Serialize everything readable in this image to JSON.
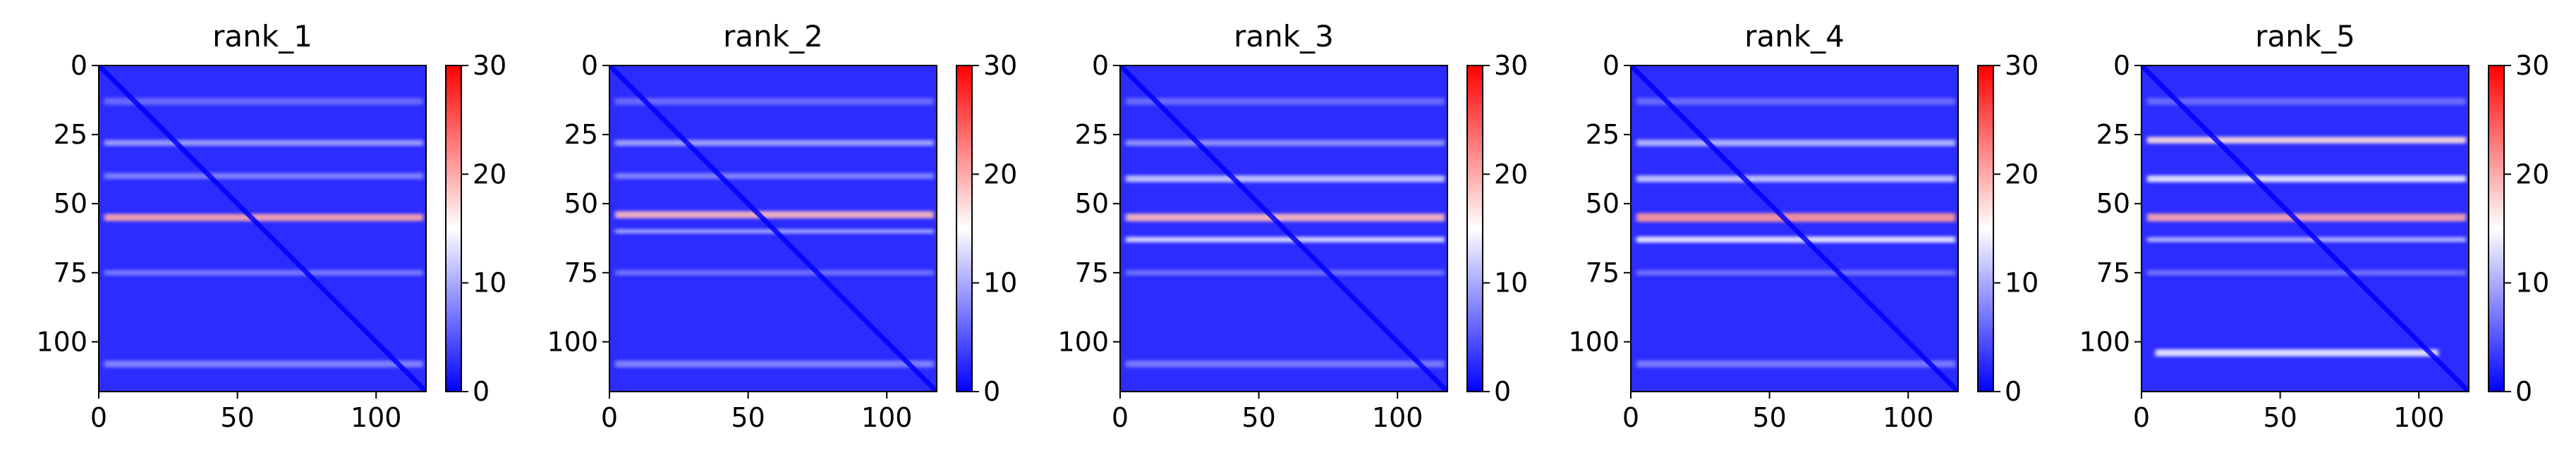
{
  "chart_data": [
    {
      "type": "heatmap",
      "title": "rank_1",
      "x_ticks": [
        "0",
        "50",
        "100"
      ],
      "y_ticks": [
        "0",
        "25",
        "50",
        "75",
        "100"
      ],
      "x_tick_values": [
        0,
        50,
        100
      ],
      "y_tick_values": [
        0,
        25,
        50,
        75,
        100
      ],
      "xlim": [
        0,
        118
      ],
      "ylim": [
        118,
        0
      ],
      "colorbar": {
        "ticks": [
          "0",
          "10",
          "20",
          "30"
        ],
        "tick_values": [
          0,
          10,
          20,
          30
        ],
        "range": [
          0,
          30
        ],
        "colormap": "bwr"
      },
      "bands": [
        {
          "row": 13,
          "width": 2.5,
          "value": 6.5,
          "extent": [
            2,
            117
          ]
        },
        {
          "row": 28,
          "width": 2.2,
          "value": 9.5,
          "extent": [
            2,
            117
          ]
        },
        {
          "row": 40,
          "width": 2.2,
          "value": 8.0,
          "extent": [
            2,
            117
          ]
        },
        {
          "row": 55,
          "width": 2.6,
          "value": 20.0,
          "extent": [
            2,
            117
          ]
        },
        {
          "row": 75,
          "width": 2.0,
          "value": 7.5,
          "extent": [
            2,
            117
          ]
        },
        {
          "row": 108,
          "width": 2.5,
          "value": 8.0,
          "extent": [
            2,
            117
          ]
        }
      ]
    },
    {
      "type": "heatmap",
      "title": "rank_2",
      "x_ticks": [
        "0",
        "50",
        "100"
      ],
      "y_ticks": [
        "0",
        "25",
        "50",
        "75",
        "100"
      ],
      "x_tick_values": [
        0,
        50,
        100
      ],
      "y_tick_values": [
        0,
        25,
        50,
        75,
        100
      ],
      "xlim": [
        0,
        118
      ],
      "ylim": [
        118,
        0
      ],
      "colorbar": {
        "ticks": [
          "0",
          "10",
          "20",
          "30"
        ],
        "tick_values": [
          0,
          10,
          20,
          30
        ],
        "range": [
          0,
          30
        ],
        "colormap": "bwr"
      },
      "bands": [
        {
          "row": 13,
          "width": 2.5,
          "value": 6.5,
          "extent": [
            2,
            117
          ]
        },
        {
          "row": 28,
          "width": 2.2,
          "value": 10.0,
          "extent": [
            2,
            117
          ]
        },
        {
          "row": 40,
          "width": 2.2,
          "value": 8.0,
          "extent": [
            2,
            117
          ]
        },
        {
          "row": 54,
          "width": 2.6,
          "value": 19.0,
          "extent": [
            2,
            117
          ]
        },
        {
          "row": 60,
          "width": 1.6,
          "value": 10.0,
          "extent": [
            2,
            117
          ]
        },
        {
          "row": 75,
          "width": 2.0,
          "value": 7.0,
          "extent": [
            2,
            117
          ]
        },
        {
          "row": 108,
          "width": 2.5,
          "value": 8.0,
          "extent": [
            2,
            117
          ]
        }
      ]
    },
    {
      "type": "heatmap",
      "title": "rank_3",
      "x_ticks": [
        "0",
        "50",
        "100"
      ],
      "y_ticks": [
        "0",
        "25",
        "50",
        "75",
        "100"
      ],
      "x_tick_values": [
        0,
        50,
        100
      ],
      "y_tick_values": [
        0,
        25,
        50,
        75,
        100
      ],
      "xlim": [
        0,
        118
      ],
      "ylim": [
        118,
        0
      ],
      "colorbar": {
        "ticks": [
          "0",
          "10",
          "20",
          "30"
        ],
        "tick_values": [
          0,
          10,
          20,
          30
        ],
        "range": [
          0,
          30
        ],
        "colormap": "bwr"
      },
      "bands": [
        {
          "row": 13,
          "width": 2.5,
          "value": 6.5,
          "extent": [
            2,
            117
          ]
        },
        {
          "row": 28,
          "width": 2.2,
          "value": 9.0,
          "extent": [
            2,
            117
          ]
        },
        {
          "row": 41,
          "width": 2.4,
          "value": 12.0,
          "extent": [
            2,
            117
          ]
        },
        {
          "row": 55,
          "width": 2.8,
          "value": 19.0,
          "extent": [
            2,
            117
          ]
        },
        {
          "row": 63,
          "width": 2.0,
          "value": 13.0,
          "extent": [
            2,
            117
          ]
        },
        {
          "row": 75,
          "width": 2.0,
          "value": 7.0,
          "extent": [
            2,
            117
          ]
        },
        {
          "row": 108,
          "width": 2.5,
          "value": 7.5,
          "extent": [
            2,
            117
          ]
        }
      ]
    },
    {
      "type": "heatmap",
      "title": "rank_4",
      "x_ticks": [
        "0",
        "50",
        "100"
      ],
      "y_ticks": [
        "0",
        "25",
        "50",
        "75",
        "100"
      ],
      "x_tick_values": [
        0,
        50,
        100
      ],
      "y_tick_values": [
        0,
        25,
        50,
        75,
        100
      ],
      "xlim": [
        0,
        118
      ],
      "ylim": [
        118,
        0
      ],
      "colorbar": {
        "ticks": [
          "0",
          "10",
          "20",
          "30"
        ],
        "tick_values": [
          0,
          10,
          20,
          30
        ],
        "range": [
          0,
          30
        ],
        "colormap": "bwr"
      },
      "bands": [
        {
          "row": 13,
          "width": 2.5,
          "value": 6.5,
          "extent": [
            2,
            117
          ]
        },
        {
          "row": 28,
          "width": 2.4,
          "value": 11.0,
          "extent": [
            2,
            117
          ]
        },
        {
          "row": 41,
          "width": 2.4,
          "value": 12.0,
          "extent": [
            2,
            117
          ]
        },
        {
          "row": 55,
          "width": 3.2,
          "value": 21.0,
          "extent": [
            2,
            117
          ]
        },
        {
          "row": 63,
          "width": 2.2,
          "value": 14.0,
          "extent": [
            2,
            117
          ]
        },
        {
          "row": 75,
          "width": 2.0,
          "value": 7.0,
          "extent": [
            2,
            117
          ]
        },
        {
          "row": 108,
          "width": 2.5,
          "value": 7.5,
          "extent": [
            2,
            117
          ]
        }
      ]
    },
    {
      "type": "heatmap",
      "title": "rank_5",
      "x_ticks": [
        "0",
        "50",
        "100"
      ],
      "y_ticks": [
        "0",
        "25",
        "50",
        "75",
        "100"
      ],
      "x_tick_values": [
        0,
        50,
        100
      ],
      "y_tick_values": [
        0,
        25,
        50,
        75,
        100
      ],
      "xlim": [
        0,
        118
      ],
      "ylim": [
        118,
        0
      ],
      "colorbar": {
        "ticks": [
          "0",
          "10",
          "20",
          "30"
        ],
        "tick_values": [
          0,
          10,
          20,
          30
        ],
        "range": [
          0,
          30
        ],
        "colormap": "bwr"
      },
      "bands": [
        {
          "row": 13,
          "width": 2.5,
          "value": 6.5,
          "extent": [
            2,
            117
          ]
        },
        {
          "row": 27,
          "width": 2.4,
          "value": 17.0,
          "extent": [
            2,
            117
          ]
        },
        {
          "row": 41,
          "width": 2.4,
          "value": 14.0,
          "extent": [
            2,
            117
          ]
        },
        {
          "row": 55,
          "width": 2.8,
          "value": 20.0,
          "extent": [
            2,
            117
          ]
        },
        {
          "row": 63,
          "width": 1.8,
          "value": 11.0,
          "extent": [
            2,
            117
          ]
        },
        {
          "row": 75,
          "width": 2.0,
          "value": 7.0,
          "extent": [
            2,
            117
          ]
        },
        {
          "row": 104,
          "width": 2.6,
          "value": 14.0,
          "extent": [
            5,
            107
          ]
        }
      ]
    }
  ]
}
